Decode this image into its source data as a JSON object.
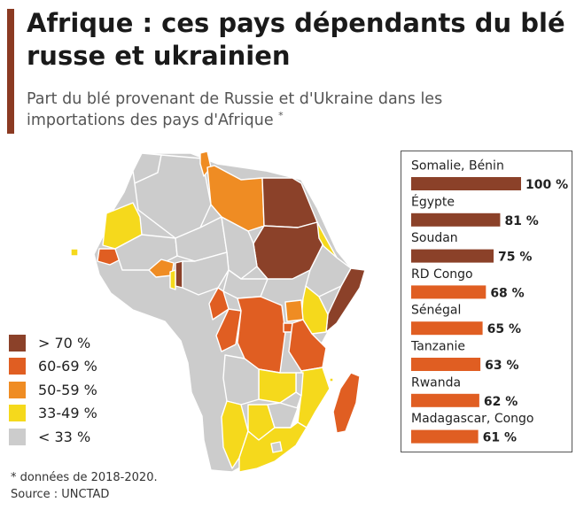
{
  "header": {
    "title": "Afrique : ces pays dépendants du blé russe et ukrainien",
    "subtitle": "Part du blé provenant de Russie et d'Ukraine dans les importations des pays d'Afrique",
    "subtitle_mark": "*"
  },
  "legend": {
    "items": [
      {
        "label": "> 70 %",
        "color": "#8b4129"
      },
      {
        "label": "60-69 %",
        "color": "#e05e22"
      },
      {
        "label": "50-59 %",
        "color": "#ef8c23"
      },
      {
        "label": "33-49 %",
        "color": "#f5d91c"
      },
      {
        "label": "< 33 %",
        "color": "#cccccc"
      }
    ]
  },
  "chart_data": {
    "type": "bar",
    "orientation": "horizontal",
    "unit": "%",
    "categories": [
      "Somalie, Bénin",
      "Égypte",
      "Soudan",
      "RD Congo",
      "Sénégal",
      "Tanzanie",
      "Rwanda",
      "Madagascar, Congo"
    ],
    "values": [
      100,
      81,
      75,
      68,
      65,
      63,
      62,
      61
    ],
    "value_labels": [
      "100 %",
      "81 %",
      "75 %",
      "68 %",
      "65 %",
      "63 %",
      "62 %",
      "61 %"
    ],
    "colors": [
      "#8b4129",
      "#8b4129",
      "#8b4129",
      "#e05e22",
      "#e05e22",
      "#e05e22",
      "#e05e22",
      "#e05e22"
    ],
    "xlim": [
      0,
      100
    ]
  },
  "footer": {
    "note": "* données de 2018-2020.",
    "source": "Source : UNCTAD"
  }
}
